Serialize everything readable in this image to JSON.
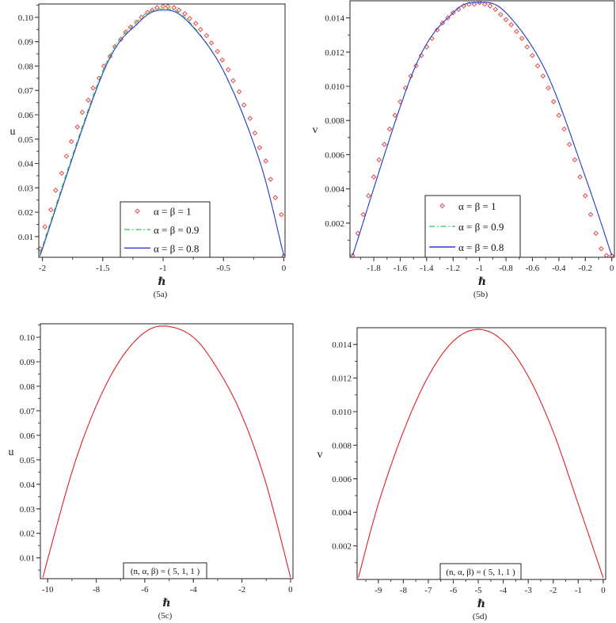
{
  "colors": {
    "series_1": "#e8474a",
    "series_09": "#2ecc40",
    "series_08": "#2b3fd6",
    "single_curve": "#e02020",
    "frame": "#222222"
  },
  "chart_data": [
    {
      "id": "5a",
      "type": "line",
      "caption": "(5a)",
      "xlabel": "ℏ",
      "ylabel": "u",
      "xlim": [
        -2.03,
        0.01
      ],
      "ylim": [
        0.0015,
        0.1055
      ],
      "xticks": [
        -2,
        -1.5,
        -1,
        -0.5,
        0
      ],
      "xtick_labels": [
        "-2",
        "-1.5",
        "-1",
        "-0.5",
        "0"
      ],
      "yticks": [
        0.01,
        0.02,
        0.03,
        0.04,
        0.05,
        0.06,
        0.07,
        0.08,
        0.09,
        0.1
      ],
      "ytick_labels": [
        "0.01",
        "0.02",
        "0.03",
        "0.04",
        "0.05",
        "0.06",
        "0.07",
        "0.08",
        "0.09",
        "0.10"
      ],
      "legend": {
        "position": "lower center",
        "entries": [
          {
            "label": "α = β = 1",
            "style": "diamond-markers"
          },
          {
            "label": "α = β = 0.9",
            "style": "dash-dot"
          },
          {
            "label": "α = β = 0.8",
            "style": "solid"
          }
        ]
      },
      "series": [
        {
          "name": "α = β = 1",
          "x": [
            -2.02,
            -1.98,
            -1.93,
            -1.89,
            -1.84,
            -1.8,
            -1.76,
            -1.71,
            -1.67,
            -1.62,
            -1.58,
            -1.53,
            -1.49,
            -1.44,
            -1.4,
            -1.35,
            -1.31,
            -1.27,
            -1.22,
            -1.18,
            -1.13,
            -1.09,
            -1.05,
            -1.0,
            -0.96,
            -0.91,
            -0.87,
            -0.82,
            -0.78,
            -0.73,
            -0.69,
            -0.64,
            -0.6,
            -0.55,
            -0.51,
            -0.46,
            -0.42,
            -0.37,
            -0.33,
            -0.28,
            -0.24,
            -0.2,
            -0.15,
            -0.11,
            -0.07,
            -0.02,
            0.0
          ],
          "y": [
            0.005,
            0.014,
            0.021,
            0.029,
            0.036,
            0.043,
            0.049,
            0.055,
            0.061,
            0.066,
            0.071,
            0.075,
            0.08,
            0.084,
            0.088,
            0.091,
            0.094,
            0.096,
            0.098,
            0.1,
            0.102,
            0.103,
            0.104,
            0.1045,
            0.1045,
            0.104,
            0.103,
            0.1015,
            0.0995,
            0.0975,
            0.095,
            0.0925,
            0.0895,
            0.086,
            0.0825,
            0.0785,
            0.074,
            0.0695,
            0.064,
            0.0585,
            0.0525,
            0.0465,
            0.041,
            0.0335,
            0.026,
            0.019,
            0.002
          ]
        },
        {
          "name": "α = β = 0.9",
          "x": [
            -2.02,
            -1.5,
            -1.2,
            -1.0,
            -0.8,
            -0.5,
            -0.2,
            0.0
          ],
          "y": [
            0.003,
            0.078,
            0.099,
            0.1035,
            0.099,
            0.078,
            0.041,
            0.002
          ]
        },
        {
          "name": "α = β = 0.8",
          "x": [
            -2.02,
            -1.5,
            -1.2,
            -1.0,
            -0.8,
            -0.5,
            -0.2,
            0.0
          ],
          "y": [
            0.002,
            0.077,
            0.098,
            0.103,
            0.0985,
            0.078,
            0.041,
            0.002
          ]
        }
      ]
    },
    {
      "id": "5b",
      "type": "line",
      "caption": "(5b)",
      "xlabel": "ℏ",
      "ylabel": "v",
      "xlim": [
        -1.98,
        0.02
      ],
      "ylim": [
        0.0,
        0.015
      ],
      "xticks": [
        -1.8,
        -1.6,
        -1.4,
        -1.2,
        -1,
        -0.8,
        -0.6,
        -0.4,
        -0.2,
        0
      ],
      "xtick_labels": [
        "-1.8",
        "-1.6",
        "-1.4",
        "-1.2",
        "-1",
        "-0.8",
        "-0.6",
        "-0.4",
        "-0.2",
        "0"
      ],
      "yticks": [
        0.002,
        0.004,
        0.006,
        0.008,
        0.01,
        0.012,
        0.014
      ],
      "ytick_labels": [
        "0.002",
        "0.004",
        "0.006",
        "0.008",
        "0.010",
        "0.012",
        "0.014"
      ],
      "legend": {
        "position": "lower center",
        "entries": [
          {
            "label": "α = β = 1",
            "style": "diamond-markers"
          },
          {
            "label": "α = β = 0.9",
            "style": "dash-dot"
          },
          {
            "label": "α = β = 0.8",
            "style": "solid"
          }
        ]
      },
      "series": [
        {
          "name": "α = β = 1",
          "x": [
            -1.96,
            -1.92,
            -1.88,
            -1.84,
            -1.8,
            -1.76,
            -1.72,
            -1.68,
            -1.64,
            -1.6,
            -1.56,
            -1.52,
            -1.48,
            -1.44,
            -1.4,
            -1.36,
            -1.32,
            -1.28,
            -1.24,
            -1.2,
            -1.16,
            -1.12,
            -1.08,
            -1.04,
            -1.0,
            -0.96,
            -0.92,
            -0.88,
            -0.84,
            -0.8,
            -0.76,
            -0.72,
            -0.68,
            -0.64,
            -0.6,
            -0.56,
            -0.52,
            -0.48,
            -0.44,
            -0.4,
            -0.36,
            -0.32,
            -0.28,
            -0.24,
            -0.2,
            -0.16,
            -0.12,
            -0.08,
            -0.04,
            0.0
          ],
          "y": [
            0.0001,
            0.0014,
            0.0025,
            0.0036,
            0.0047,
            0.0057,
            0.0066,
            0.0075,
            0.0083,
            0.0091,
            0.0099,
            0.0106,
            0.0112,
            0.0118,
            0.0123,
            0.0128,
            0.0133,
            0.0137,
            0.014,
            0.0143,
            0.0145,
            0.0147,
            0.0148,
            0.0148,
            0.0149,
            0.0148,
            0.0147,
            0.0145,
            0.0142,
            0.0139,
            0.0136,
            0.0132,
            0.0128,
            0.0123,
            0.0118,
            0.0112,
            0.0106,
            0.0099,
            0.0091,
            0.0083,
            0.0075,
            0.0066,
            0.0057,
            0.0047,
            0.0036,
            0.0025,
            0.0014,
            0.0005,
            0.0001,
            0.0001
          ]
        },
        {
          "name": "α = β = 0.9",
          "x": [
            -1.96,
            -1.5,
            -1.2,
            -1.0,
            -0.8,
            -0.5,
            -0.2,
            0.0
          ],
          "y": [
            0.0001,
            0.0109,
            0.0143,
            0.0149,
            0.0143,
            0.0109,
            0.0047,
            0.0001
          ]
        },
        {
          "name": "α = β = 0.8",
          "x": [
            -1.96,
            -1.5,
            -1.2,
            -1.0,
            -0.8,
            -0.5,
            -0.2,
            0.0
          ],
          "y": [
            0.0001,
            0.0109,
            0.0143,
            0.0149,
            0.0143,
            0.0109,
            0.0047,
            0.0001
          ]
        }
      ]
    },
    {
      "id": "5c",
      "type": "line",
      "caption": "(5c)",
      "xlabel": "ℏ",
      "ylabel": "u",
      "xlim": [
        -10.3,
        0.1
      ],
      "ylim": [
        0.0015,
        0.1055
      ],
      "xticks": [
        -10,
        -8,
        -6,
        -4,
        -2,
        0
      ],
      "xtick_labels": [
        "-10",
        "-8",
        "-6",
        "-4",
        "-2",
        "0"
      ],
      "yticks": [
        0.01,
        0.02,
        0.03,
        0.04,
        0.05,
        0.06,
        0.07,
        0.08,
        0.09,
        0.1
      ],
      "ytick_labels": [
        "0.01",
        "0.02",
        "0.03",
        "0.04",
        "0.05",
        "0.06",
        "0.07",
        "0.08",
        "0.09",
        "0.10"
      ],
      "annotation": "(n, α, β) = ( 5, 1, 1 )",
      "series": [
        {
          "name": "(n, α, β) = (5, 1, 1)",
          "x": [
            -10.2,
            -9,
            -8,
            -7,
            -6,
            -5.1,
            -4,
            -3,
            -2,
            -1,
            0.0
          ],
          "y": [
            0.002,
            0.045,
            0.072,
            0.091,
            0.102,
            0.1045,
            0.1,
            0.087,
            0.068,
            0.04,
            0.002
          ]
        }
      ]
    },
    {
      "id": "5d",
      "type": "line",
      "caption": "(5d)",
      "xlabel": "ℏ",
      "ylabel": "v",
      "xlim": [
        -9.85,
        0.1
      ],
      "ylim": [
        0.0,
        0.015
      ],
      "xticks": [
        -9,
        -8,
        -7,
        -6,
        -5,
        -4,
        -3,
        -2,
        -1,
        0
      ],
      "xtick_labels": [
        "-9",
        "-8",
        "-7",
        "-6",
        "-5",
        "-4",
        "-3",
        "-2",
        "-1",
        "0"
      ],
      "yticks": [
        0.002,
        0.004,
        0.006,
        0.008,
        0.01,
        0.012,
        0.014
      ],
      "ytick_labels": [
        "0.002",
        "0.004",
        "0.006",
        "0.008",
        "0.010",
        "0.012",
        "0.014"
      ],
      "annotation": "(n, α, β) = ( 5, 1, 1 )",
      "series": [
        {
          "name": "(n, α, β) = (5, 1, 1)",
          "x": [
            -9.8,
            -9,
            -8,
            -7,
            -6,
            -5,
            -4,
            -3,
            -2,
            -1,
            0.0
          ],
          "y": [
            0.0001,
            0.0045,
            0.0088,
            0.0121,
            0.0142,
            0.0149,
            0.0142,
            0.0121,
            0.0088,
            0.0045,
            0.0001
          ]
        }
      ]
    }
  ]
}
